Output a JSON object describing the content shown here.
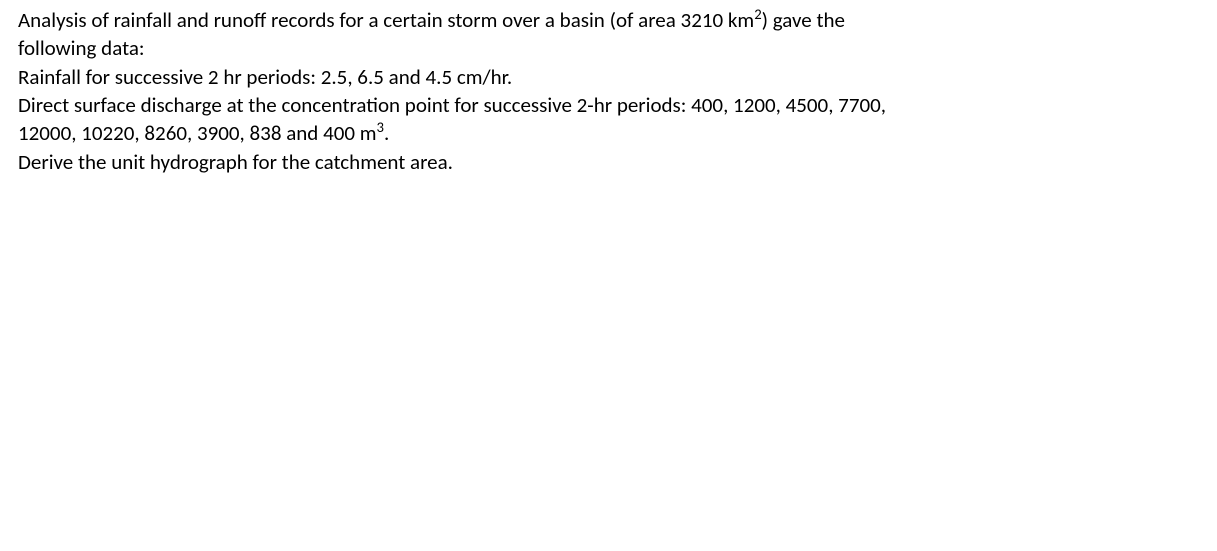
{
  "problem": {
    "line1_pre": "Analysis of rainfall and runoff records for a certain storm over a basin (of area ",
    "area_value": "3210",
    "area_unit_base": "km",
    "area_unit_sup": "2",
    "line1_post": ") gave the",
    "line2": "following data:",
    "line3_pre": "Rainfall for successive 2 hr periods: ",
    "rain_values": "2.5, 6.5 and 4.5",
    "rain_unit": " cm/hr.",
    "line4_pre": "Direct surface discharge at the concentration point for successive 2-hr periods: ",
    "discharge_head": "400, 1200, 4500, 7700,",
    "discharge_tail_pre": "12000, 10220, 8260, 3900, 838 and 400 ",
    "vol_unit_base": "m",
    "vol_unit_sup": "3",
    "vol_unit_post": ".",
    "line6": "Derive the unit hydrograph for the catchment area."
  }
}
